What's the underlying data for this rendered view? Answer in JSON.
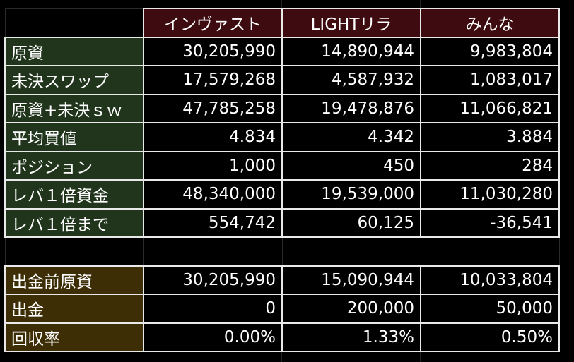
{
  "header": [
    "インヴァスト",
    "LIGHTリラ",
    "みんな"
  ],
  "rows_top": [
    {
      "label": "原資",
      "values": [
        "30,205,990",
        "14,890,944",
        "9,983,804"
      ]
    },
    {
      "label": "未決スワップ",
      "values": [
        "17,579,268",
        "4,587,932",
        "1,083,017"
      ]
    },
    {
      "label": "原資+未決ｓｗ",
      "values": [
        "47,785,258",
        "19,478,876",
        "11,066,821"
      ]
    },
    {
      "label": "平均買値",
      "values": [
        "4.834",
        "4.342",
        "3.884"
      ]
    },
    {
      "label": "ポジション",
      "values": [
        "1,000",
        "450",
        "284"
      ]
    },
    {
      "label": "レバ１倍資金",
      "values": [
        "48,340,000",
        "19,539,000",
        "11,030,280"
      ]
    },
    {
      "label": "レバ１倍まで",
      "values": [
        "554,742",
        "60,125",
        "-36,541"
      ]
    }
  ],
  "rows_bottom": [
    {
      "label": "出金前原資",
      "values": [
        "30,205,990",
        "15,090,944",
        "10,033,804"
      ]
    },
    {
      "label": "出金",
      "values": [
        "0",
        "200,000",
        "50,000"
      ]
    },
    {
      "label": "回収率",
      "values": [
        "0.00%",
        "1.33%",
        "0.50%"
      ]
    }
  ],
  "colors": {
    "background": "#000000",
    "header_fill": "#3e0c10",
    "label_fill_top": "#20351c",
    "label_fill_bottom": "#3d2e06",
    "border": "#e9e9e9",
    "text": "#ffffff"
  }
}
